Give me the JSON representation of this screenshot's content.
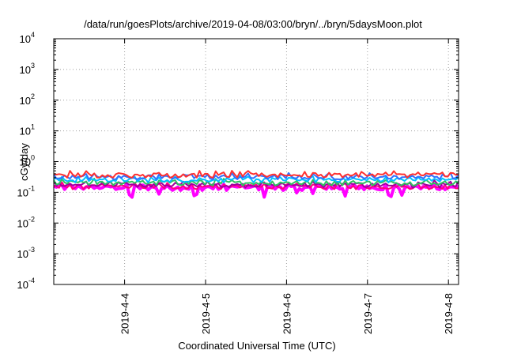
{
  "chart_data": {
    "type": "line",
    "title": "/data/run/goesPlots/archive/2019-04-08/03:00/bryn/../bryn/5daysMoon.plot",
    "xlabel": "Coordinated Universal Time (UTC)",
    "ylabel": "cGy/day",
    "yscale": "log",
    "ylim": [
      0.0001,
      10000
    ],
    "y_ticks": [
      {
        "base": "10",
        "exp": "-4"
      },
      {
        "base": "10",
        "exp": "-3"
      },
      {
        "base": "10",
        "exp": "-2"
      },
      {
        "base": "10",
        "exp": "-1"
      },
      {
        "base": "10",
        "exp": "0"
      },
      {
        "base": "10",
        "exp": "1"
      },
      {
        "base": "10",
        "exp": "2"
      },
      {
        "base": "10",
        "exp": "3"
      },
      {
        "base": "10",
        "exp": "4"
      }
    ],
    "x_range_days": [
      "2019-04-03T03:00",
      "2019-04-08T03:00"
    ],
    "x_ticks": [
      "2019-4-4",
      "2019-4-5",
      "2019-4-6",
      "2019-4-7",
      "2019-4-8"
    ],
    "grid": true,
    "series_colors": [
      "#ff00ff",
      "#ff3030",
      "#3070ff",
      "#00c0ff",
      "#30c060",
      "#a000a0",
      "#ff0080"
    ],
    "series_levels": [
      {
        "color": "#ff3030",
        "level": 0.36
      },
      {
        "color": "#3070ff",
        "level": 0.31
      },
      {
        "color": "#00c0ff",
        "level": 0.25
      },
      {
        "color": "#30c060",
        "level": 0.2
      },
      {
        "color": "#a000a0",
        "level": 0.17
      },
      {
        "color": "#ff0080",
        "level": 0.15
      },
      {
        "color": "#ff00ff",
        "level": 0.14
      }
    ]
  }
}
